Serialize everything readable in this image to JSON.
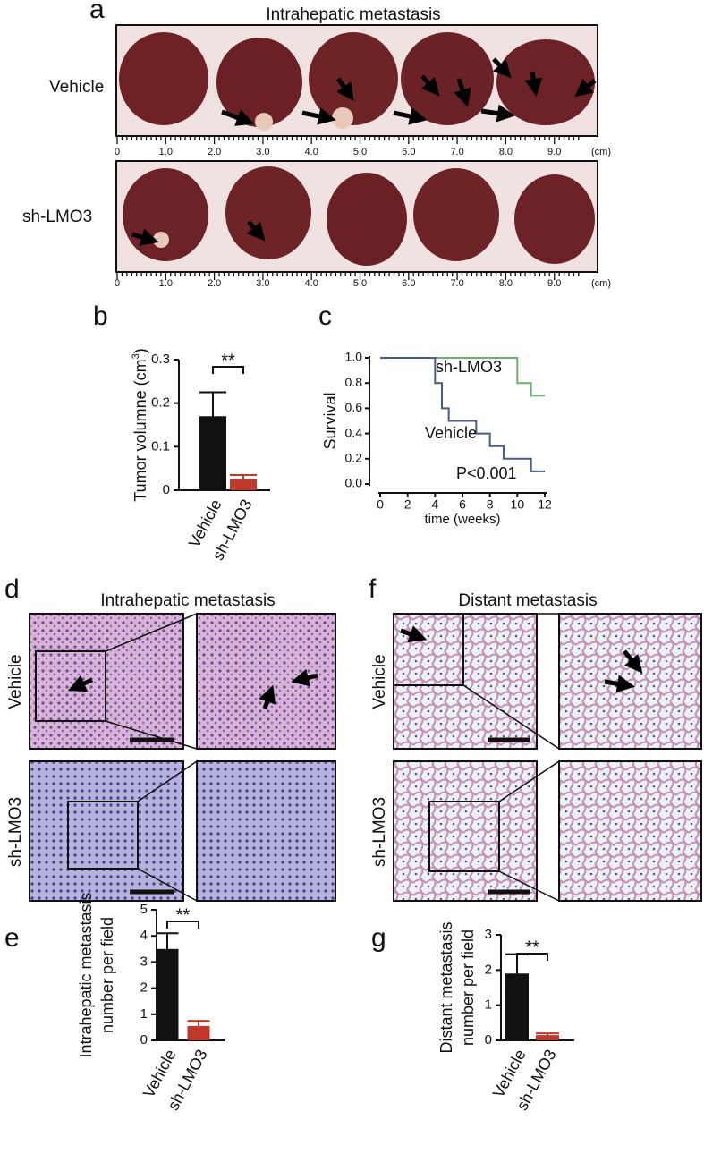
{
  "panel_letters": [
    "a",
    "b",
    "c",
    "d",
    "e",
    "f",
    "g"
  ],
  "figure_a": {
    "title": "Intrahepatic metastasis",
    "rows": [
      "Vehicle",
      "sh-LMO3"
    ],
    "ruler_labels": [
      "0",
      "1.0",
      "2.0",
      "3.0",
      "4.0",
      "5.0",
      "6.0",
      "7.0",
      "8.0",
      "9.0"
    ],
    "ruler_unit": "(cm)"
  },
  "figure_d": {
    "title": "Intrahepatic metastasis",
    "rows": [
      "Vehicle",
      "sh-LMO3"
    ]
  },
  "figure_f": {
    "title": "Distant metastasis",
    "rows": [
      "Vehicle",
      "sh-LMO3"
    ]
  },
  "chart_data": [
    {
      "type": "bar",
      "ylabel": [
        "Tumor volumne (cm",
        "3",
        ")"
      ],
      "categories": [
        "Vehicle",
        "sh-LMO3"
      ],
      "values": [
        0.17,
        0.025
      ],
      "errors": [
        0.055,
        0.01
      ],
      "colors": [
        "#111111",
        "#c0392b"
      ],
      "ylim": [
        0,
        0.3
      ],
      "yticks": [
        0,
        0.1,
        0.2,
        0.3
      ],
      "annotation": "**"
    },
    {
      "type": "line",
      "ylabel": "Survival",
      "xlabel": "time (weeks)",
      "annotation": "P<0.001",
      "xlim": [
        0,
        12
      ],
      "xticks": [
        0,
        2,
        4,
        6,
        8,
        10,
        12
      ],
      "ylim": [
        0,
        1
      ],
      "yticks": [
        {
          "value": 0,
          "label": "0.0"
        },
        {
          "value": 0.2,
          "label": "0.2"
        },
        {
          "value": 0.4,
          "label": "0.4"
        },
        {
          "value": 0.6,
          "label": "0.6"
        },
        {
          "value": 0.8,
          "label": "0.8"
        },
        {
          "value": 1,
          "label": "1.0"
        }
      ],
      "series": [
        {
          "name": "sh-LMO3",
          "color": "#6ab46a",
          "x": [
            0,
            10,
            11,
            12
          ],
          "values": [
            1.0,
            0.8,
            0.7,
            0.7
          ]
        },
        {
          "name": "Vehicle",
          "color": "#4b5a8c",
          "x": [
            0,
            4,
            4.5,
            5,
            7,
            8,
            9,
            11,
            12
          ],
          "values": [
            1.0,
            0.8,
            0.6,
            0.5,
            0.4,
            0.3,
            0.2,
            0.1,
            0.1
          ]
        }
      ]
    },
    {
      "type": "bar",
      "ylabel": [
        "Intrahepatic metastasis",
        "number per field"
      ],
      "categories": [
        "Vehicle",
        "sh-LMO3"
      ],
      "values": [
        3.5,
        0.55
      ],
      "errors": [
        0.6,
        0.2
      ],
      "colors": [
        "#111111",
        "#c0392b"
      ],
      "ylim": [
        0,
        5
      ],
      "yticks": [
        0,
        1,
        2,
        3,
        4,
        5
      ],
      "annotation": "**"
    },
    {
      "type": "bar",
      "ylabel": [
        "Distant metastasis",
        "number per field"
      ],
      "categories": [
        "Vehicle",
        "sh-LMO3"
      ],
      "values": [
        1.9,
        0.15
      ],
      "errors": [
        0.55,
        0.05
      ],
      "colors": [
        "#111111",
        "#c0392b"
      ],
      "ylim": [
        0,
        3
      ],
      "yticks": [
        0,
        1,
        2,
        3
      ],
      "annotation": "**"
    }
  ]
}
